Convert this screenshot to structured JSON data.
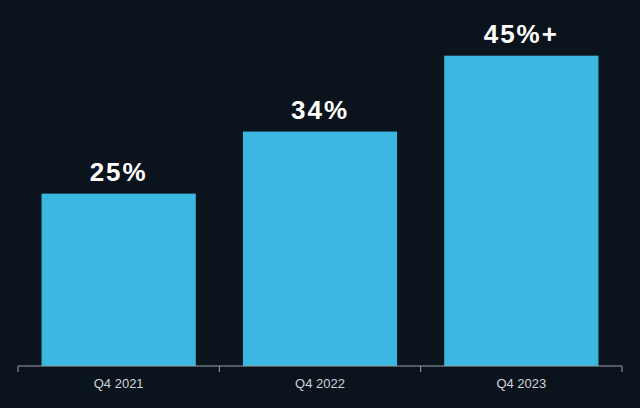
{
  "chart_data": {
    "type": "bar",
    "categories": [
      "Q4 2021",
      "Q4 2022",
      "Q4 2023"
    ],
    "values": [
      25,
      34,
      45
    ],
    "value_labels": [
      "25%",
      "34%",
      "45%+"
    ],
    "color": "#3bb8e1",
    "ylim": [
      0,
      48
    ],
    "data_labels": true,
    "tick_labels": "x",
    "grid": false
  }
}
